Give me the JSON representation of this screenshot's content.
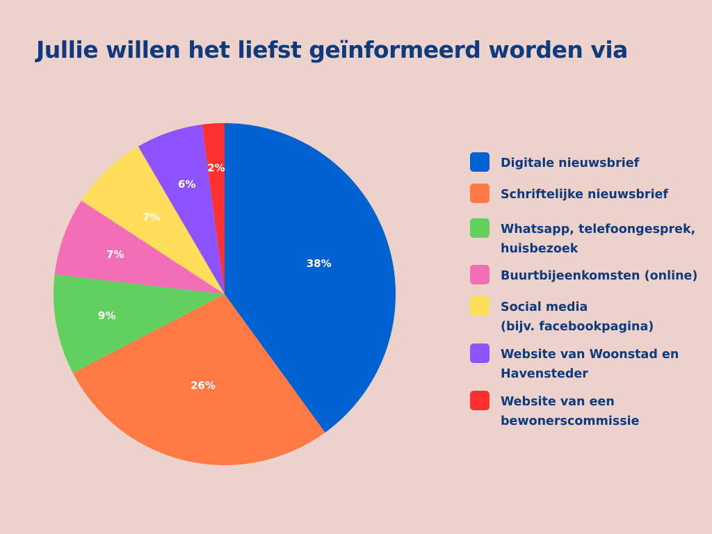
{
  "title": "Jullie willen het liefst geïnformeerd worden via",
  "chart_data": {
    "type": "pie",
    "title": "Jullie willen het liefst geïnformeerd worden via",
    "legend_position": "right",
    "slices": [
      {
        "label": "Digitale nieuwsbrief",
        "value": 38,
        "display": "38%",
        "color": "#0061d0"
      },
      {
        "label": "Schriftelijke nieuwsbrief",
        "value": 26,
        "display": "26%",
        "color": "#ff7a45"
      },
      {
        "label": "Whatsapp, telefoongesprek,\nhuisbezoek",
        "value": 9,
        "display": "9%",
        "color": "#62d05f"
      },
      {
        "label": "Buurtbijeenkomsten (online)",
        "value": 7,
        "display": "7%",
        "color": "#f26fb8"
      },
      {
        "label": "Social media\n(bijv. facebookpagina)",
        "value": 7,
        "display": "7%",
        "color": "#ffde5c"
      },
      {
        "label": "Website van Woonstad en\nHavensteder",
        "value": 6,
        "display": "6%",
        "color": "#8f52ff"
      },
      {
        "label": "Website van een\nbewonerscommissie",
        "value": 2,
        "display": "2%",
        "color": "#ff3030"
      }
    ]
  }
}
